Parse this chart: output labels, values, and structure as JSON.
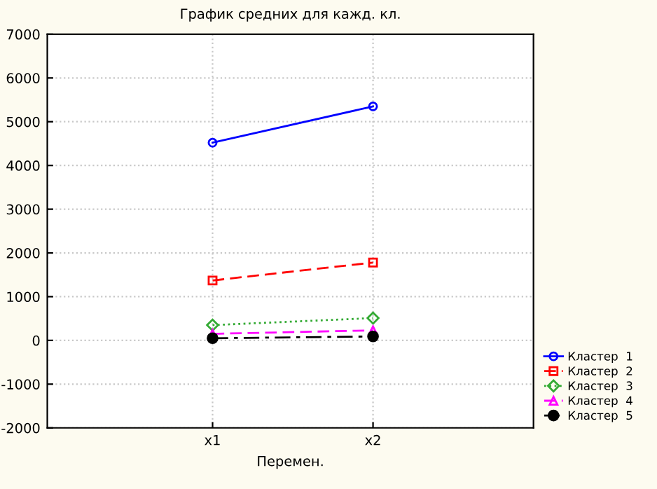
{
  "chart_data": {
    "type": "line",
    "title": "График средних для кажд. кл.",
    "xlabel": "Перемен.",
    "categories": [
      "x1",
      "x2"
    ],
    "ylim": [
      -2000,
      7000
    ],
    "yticks": [
      -2000,
      -1000,
      0,
      1000,
      2000,
      3000,
      4000,
      5000,
      6000,
      7000
    ],
    "grid": true,
    "legend": "right",
    "series": [
      {
        "name": "Кластер  1",
        "color": "#0000ff",
        "values": [
          4520,
          5350
        ],
        "marker": "circle",
        "line_style": "solid"
      },
      {
        "name": "Кластер  2",
        "color": "#ff0000",
        "values": [
          1370,
          1780
        ],
        "marker": "square",
        "line_style": "dashed"
      },
      {
        "name": "Кластер  3",
        "color": "#33aa33",
        "values": [
          350,
          510
        ],
        "marker": "diamond",
        "line_style": "dotted"
      },
      {
        "name": "Кластер  4",
        "color": "#ff00ff",
        "values": [
          150,
          230
        ],
        "marker": "triangle",
        "line_style": "dashed"
      },
      {
        "name": "Кластер  5",
        "color": "#000000",
        "values": [
          50,
          90
        ],
        "marker": "filled circle",
        "line_style": "dashdot"
      }
    ]
  }
}
